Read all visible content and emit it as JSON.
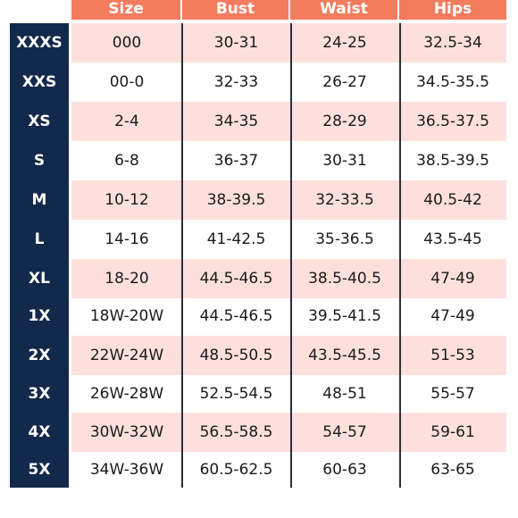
{
  "header": {
    "size": "Size",
    "bust": "Bust",
    "waist": "Waist",
    "hips": "Hips"
  },
  "rows": [
    {
      "label": "XXXS",
      "size": "000",
      "bust": "30-31",
      "waist": "24-25",
      "hips": "32.5-34"
    },
    {
      "label": "XXS",
      "size": "00-0",
      "bust": "32-33",
      "waist": "26-27",
      "hips": "34.5-35.5"
    },
    {
      "label": "XS",
      "size": "2-4",
      "bust": "34-35",
      "waist": "28-29",
      "hips": "36.5-37.5"
    },
    {
      "label": "S",
      "size": "6-8",
      "bust": "36-37",
      "waist": "30-31",
      "hips": "38.5-39.5"
    },
    {
      "label": "M",
      "size": "10-12",
      "bust": "38-39.5",
      "waist": "32-33.5",
      "hips": "40.5-42"
    },
    {
      "label": "L",
      "size": "14-16",
      "bust": "41-42.5",
      "waist": "35-36.5",
      "hips": "43.5-45"
    },
    {
      "label": "XL",
      "size": "18-20",
      "bust": "44.5-46.5",
      "waist": "38.5-40.5",
      "hips": "47-49"
    },
    {
      "label": "1X",
      "size": "18W-20W",
      "bust": "44.5-46.5",
      "waist": "39.5-41.5",
      "hips": "47-49"
    },
    {
      "label": "2X",
      "size": "22W-24W",
      "bust": "48.5-50.5",
      "waist": "43.5-45.5",
      "hips": "51-53"
    },
    {
      "label": "3X",
      "size": "26W-28W",
      "bust": "52.5-54.5",
      "waist": "48-51",
      "hips": "55-57"
    },
    {
      "label": "4X",
      "size": "30W-32W",
      "bust": "56.5-58.5",
      "waist": "54-57",
      "hips": "59-61"
    },
    {
      "label": "5X",
      "size": "34W-36W",
      "bust": "60.5-62.5",
      "waist": "60-63",
      "hips": "63-65"
    }
  ],
  "colors": {
    "header_bg": "#f47c5e",
    "size_col_bg": "#13294b",
    "shaded_row_bg": "#fde0dc",
    "divider": "#2b2f3a"
  }
}
